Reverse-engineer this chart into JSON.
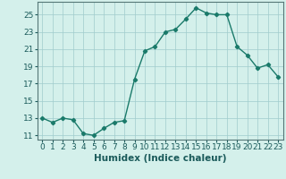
{
  "x": [
    0,
    1,
    2,
    3,
    4,
    5,
    6,
    7,
    8,
    9,
    10,
    11,
    12,
    13,
    14,
    15,
    16,
    17,
    18,
    19,
    20,
    21,
    22,
    23
  ],
  "y": [
    13,
    12.5,
    13,
    12.8,
    11.2,
    11,
    11.8,
    12.5,
    12.7,
    17.5,
    20.8,
    21.3,
    23,
    23.3,
    24.5,
    25.8,
    25.2,
    25,
    25,
    21.3,
    20.3,
    18.8,
    19.2,
    17.8
  ],
  "line_color": "#1a7a6a",
  "marker": "D",
  "marker_size": 2.2,
  "bg_color": "#d4f0eb",
  "grid_color": "#a0cccc",
  "xlabel": "Humidex (Indice chaleur)",
  "ylim": [
    10.5,
    26.5
  ],
  "yticks": [
    11,
    13,
    15,
    17,
    19,
    21,
    23,
    25
  ],
  "xlim": [
    -0.5,
    23.5
  ],
  "xticks": [
    0,
    1,
    2,
    3,
    4,
    5,
    6,
    7,
    8,
    9,
    10,
    11,
    12,
    13,
    14,
    15,
    16,
    17,
    18,
    19,
    20,
    21,
    22,
    23
  ],
  "xlabel_fontsize": 7.5,
  "tick_fontsize": 6.5,
  "line_width": 1.0,
  "tick_color": "#1a5a5a",
  "spine_color": "#557777"
}
